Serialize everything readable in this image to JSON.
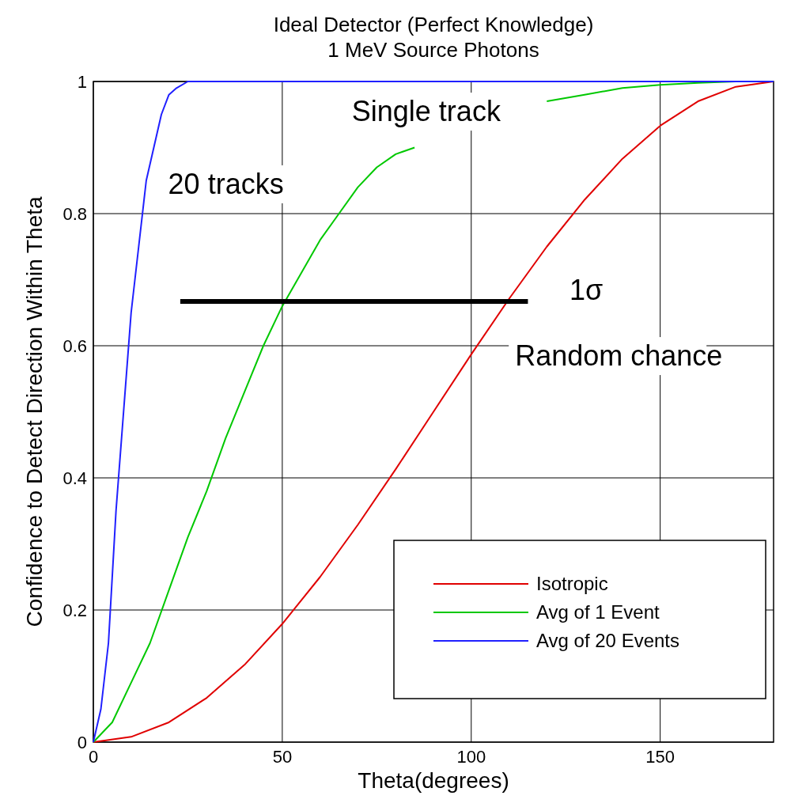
{
  "chart_data": {
    "type": "line",
    "title": "Ideal Detector (Perfect Knowledge)",
    "subtitle": "1 MeV Source Photons",
    "xlabel": "Theta(degrees)",
    "ylabel": "Confidence to Detect Direction Within Theta",
    "xlim": [
      0,
      180
    ],
    "ylim": [
      0,
      1
    ],
    "xticks": [
      0,
      50,
      100,
      150
    ],
    "yticks": [
      0,
      0.2,
      0.4,
      0.6,
      0.8,
      1
    ],
    "grid": true,
    "legend": "bottom right",
    "series": [
      {
        "name": "Isotropic",
        "color": "#e00000",
        "x": [
          0,
          10,
          20,
          30,
          40,
          50,
          60,
          70,
          80,
          90,
          100,
          110,
          120,
          130,
          140,
          150,
          160,
          170,
          180
        ],
        "values": [
          0,
          0.008,
          0.03,
          0.067,
          0.117,
          0.179,
          0.25,
          0.329,
          0.413,
          0.5,
          0.587,
          0.671,
          0.75,
          0.821,
          0.883,
          0.933,
          0.97,
          0.992,
          1
        ]
      },
      {
        "name": "Avg of 1 Event",
        "color": "#00c800",
        "x": [
          0,
          5,
          10,
          15,
          20,
          25,
          30,
          35,
          40,
          45,
          50,
          55,
          60,
          65,
          70,
          75,
          80,
          85,
          90,
          100,
          110,
          120,
          130,
          140,
          150,
          160,
          170,
          180
        ],
        "values": [
          0,
          0.03,
          0.09,
          0.15,
          0.23,
          0.31,
          0.38,
          0.46,
          0.53,
          0.6,
          0.66,
          0.71,
          0.76,
          0.8,
          0.84,
          0.87,
          0.89,
          0.9,
          null,
          null,
          null,
          0.97,
          0.98,
          0.99,
          0.995,
          0.998,
          1,
          1
        ]
      },
      {
        "name": "Avg of 20 Events",
        "color": "#2020ff",
        "x": [
          0,
          2,
          4,
          6,
          8,
          10,
          12,
          14,
          16,
          18,
          20,
          22,
          25,
          30,
          60,
          100,
          140,
          180
        ],
        "values": [
          0,
          0.05,
          0.15,
          0.35,
          0.5,
          0.65,
          0.75,
          0.85,
          0.9,
          0.95,
          0.98,
          0.99,
          1,
          1,
          1,
          1,
          1,
          1
        ]
      },
      {
        "color": "#000000",
        "x": [
          23,
          115
        ],
        "values": [
          0.667,
          0.667
        ]
      }
    ],
    "annotations": [
      "Single track",
      "20 tracks",
      "1σ",
      "Random chance"
    ]
  }
}
